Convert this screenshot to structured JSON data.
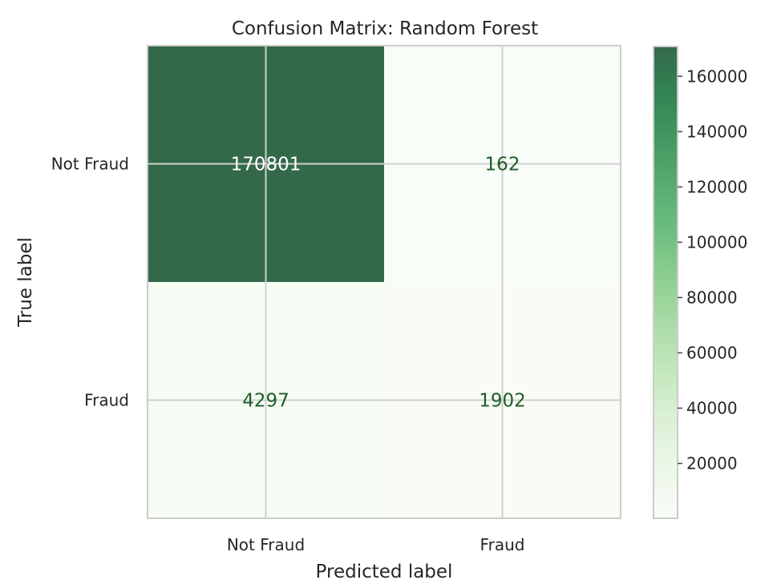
{
  "chart_data": {
    "type": "heatmap",
    "title": "Confusion Matrix: Random Forest",
    "xlabel": "Predicted label",
    "ylabel": "True label",
    "x_categories": [
      "Not Fraud",
      "Fraud"
    ],
    "y_categories": [
      "Not Fraud",
      "Fraud"
    ],
    "values": [
      [
        170801,
        162
      ],
      [
        4297,
        1902
      ]
    ],
    "colormap": "Greens",
    "colormap_stops": [
      "#f7fcf5",
      "#e5f5e0",
      "#c7e9c0",
      "#a1d99b",
      "#74c476",
      "#41ab5d",
      "#238b45",
      "#006d2c",
      "#00441b"
    ],
    "color_alpha": 0.8,
    "color_range": [
      162,
      170801
    ],
    "colorbar_ticks": [
      20000,
      40000,
      60000,
      80000,
      100000,
      120000,
      140000,
      160000
    ],
    "grid": true,
    "grid_color": "#d0d0d0",
    "text_color_dark": "#1f5c27",
    "text_color_light": "#ffffff"
  }
}
